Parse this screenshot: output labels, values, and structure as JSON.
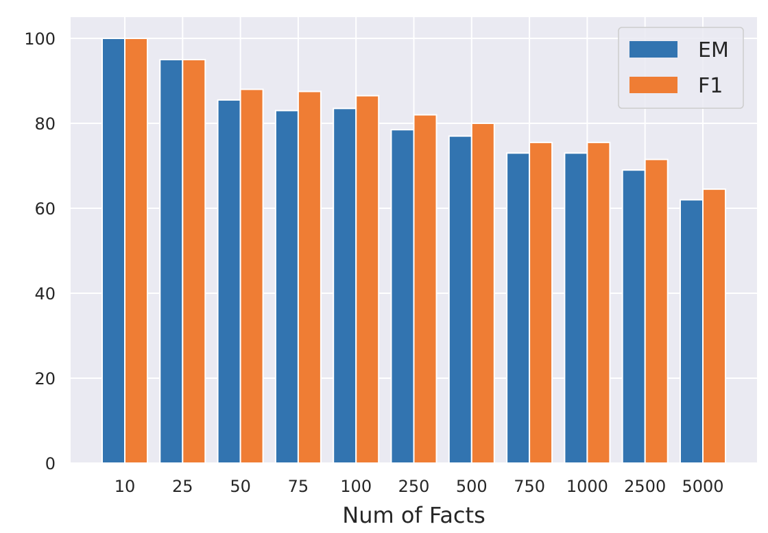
{
  "chart_data": {
    "type": "bar",
    "title": "",
    "xlabel": "Num of Facts",
    "ylabel": "",
    "categories": [
      "10",
      "25",
      "50",
      "75",
      "100",
      "250",
      "500",
      "750",
      "1000",
      "2500",
      "5000"
    ],
    "series": [
      {
        "name": "EM",
        "color": "#3274b0",
        "values": [
          100,
          95,
          85.5,
          83,
          83.5,
          78.5,
          77,
          73,
          73,
          69,
          62
        ]
      },
      {
        "name": "F1",
        "color": "#ef7d34",
        "values": [
          100,
          95,
          88,
          87.5,
          86.5,
          82,
          80,
          75.5,
          75.5,
          71.5,
          64.5
        ]
      }
    ],
    "ylim": [
      0,
      105
    ],
    "yticks": [
      "0",
      "20",
      "40",
      "60",
      "80",
      "100"
    ],
    "grid": true,
    "legend": "top-right",
    "colors": {
      "background": "#eaeaf2",
      "grid": "#ffffff",
      "text": "#262626"
    }
  }
}
